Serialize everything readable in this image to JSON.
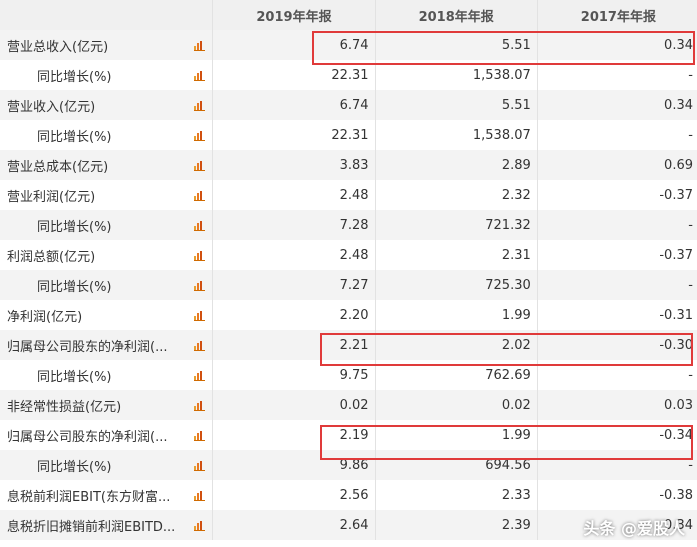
{
  "table": {
    "columns": [
      "2019年年报",
      "2018年年报",
      "2017年年报"
    ],
    "rows": [
      {
        "label": "营业总收入(亿元)",
        "values": [
          "6.74",
          "5.51",
          "0.34"
        ]
      },
      {
        "label": "同比增长(%)",
        "values": [
          "22.31",
          "1,538.07",
          "-"
        ]
      },
      {
        "label": "营业收入(亿元)",
        "values": [
          "6.74",
          "5.51",
          "0.34"
        ]
      },
      {
        "label": "同比增长(%)",
        "values": [
          "22.31",
          "1,538.07",
          "-"
        ]
      },
      {
        "label": "营业总成本(亿元)",
        "values": [
          "3.83",
          "2.89",
          "0.69"
        ]
      },
      {
        "label": "营业利润(亿元)",
        "values": [
          "2.48",
          "2.32",
          "-0.37"
        ]
      },
      {
        "label": "同比增长(%)",
        "values": [
          "7.28",
          "721.32",
          "-"
        ]
      },
      {
        "label": "利润总额(亿元)",
        "values": [
          "2.48",
          "2.31",
          "-0.37"
        ]
      },
      {
        "label": "同比增长(%)",
        "values": [
          "7.27",
          "725.30",
          "-"
        ]
      },
      {
        "label": "净利润(亿元)",
        "values": [
          "2.20",
          "1.99",
          "-0.31"
        ]
      },
      {
        "label": "归属母公司股东的净利润(...",
        "values": [
          "2.21",
          "2.02",
          "-0.30"
        ]
      },
      {
        "label": "同比增长(%)",
        "values": [
          "9.75",
          "762.69",
          "-"
        ]
      },
      {
        "label": "非经常性损益(亿元)",
        "values": [
          "0.02",
          "0.02",
          "0.03"
        ]
      },
      {
        "label": "归属母公司股东的净利润(...",
        "values": [
          "2.19",
          "1.99",
          "-0.34"
        ]
      },
      {
        "label": "同比增长(%)",
        "values": [
          "9.86",
          "694.56",
          "-"
        ]
      },
      {
        "label": "息税前利润EBIT(东方财富...",
        "values": [
          "2.56",
          "2.33",
          "-0.38"
        ]
      },
      {
        "label": "息税折旧摊销前利润EBITD...",
        "values": [
          "2.64",
          "2.39",
          "0.34"
        ]
      }
    ]
  },
  "watermark": "头条 @爱股人",
  "colors": {
    "highlight": "#e03a3a",
    "header_bg": "#f0f0f0",
    "odd_row_bg": "#f3f3f3",
    "icon": "#e87820"
  }
}
